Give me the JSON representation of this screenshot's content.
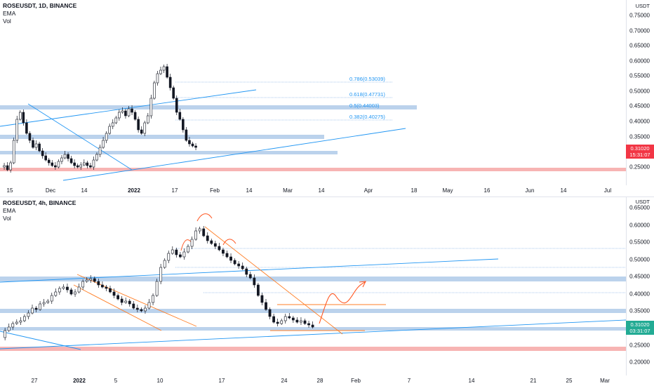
{
  "top_chart": {
    "symbol": "ROSEUSDT, 1D, BINANCE",
    "indicators": [
      "EMA",
      "Vol"
    ],
    "currency": "USDT",
    "price_ticks": [
      "0.75000",
      "0.70000",
      "0.65000",
      "0.60000",
      "0.55000",
      "0.50000",
      "0.45000",
      "0.40000",
      "0.35000",
      "0.25000"
    ],
    "current_price": "0.31020",
    "countdown": "15:31:07",
    "time_labels": [
      "15",
      "Dec",
      "14",
      "2022",
      "17",
      "Feb",
      "14",
      "Mar",
      "14",
      "Apr",
      "18",
      "May",
      "16",
      "Jun",
      "14",
      "Jul"
    ],
    "fib_levels": [
      {
        "label": "0.786(0.53039)"
      },
      {
        "label": "0.618(0.47731)"
      },
      {
        "label": "0.5(0.44003)"
      },
      {
        "label": "0.382(0.40275)"
      }
    ]
  },
  "bottom_chart": {
    "symbol": "ROSEUSDT, 4h, BINANCE",
    "indicators": [
      "EMA",
      "Vol"
    ],
    "currency": "USDT",
    "price_ticks": [
      "0.65000",
      "0.60000",
      "0.55000",
      "0.50000",
      "0.45000",
      "0.40000",
      "0.35000",
      "0.25000",
      "0.20000"
    ],
    "current_price": "0.31020",
    "countdown": "03:31:07",
    "time_labels": [
      "27",
      "2022",
      "5",
      "10",
      "17",
      "24",
      "28",
      "Feb",
      "7",
      "14",
      "21",
      "25",
      "Mar"
    ]
  },
  "colors": {
    "up": "#26a69a",
    "down": "#ef5350",
    "candle": "#131722",
    "zone_blue": "#bbd2ec",
    "zone_red": "#f7b4b3",
    "trend": "#2196f3",
    "orange": "#ff7f27",
    "badge_red": "#f23645",
    "badge_teal": "#22ab94"
  }
}
